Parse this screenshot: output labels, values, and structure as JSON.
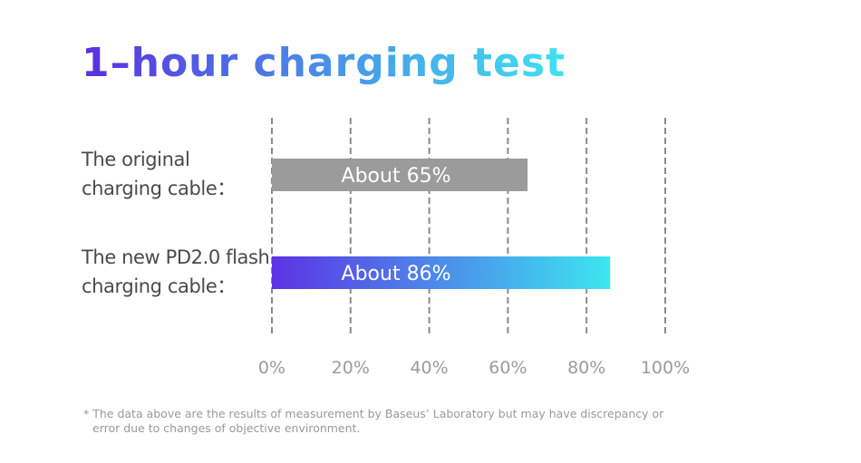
{
  "chart_data": {
    "type": "hbar",
    "title": "1–hour charging test",
    "categories": [
      "The original charging cable：",
      "The new PD2.0 flash charging cable："
    ],
    "values": [
      65,
      86
    ],
    "value_labels": [
      "About 65%",
      "About 86%"
    ],
    "colors": [
      [
        "#9b9b9b",
        "#9b9b9b"
      ],
      [
        "#5c33e4",
        "#3ce6f0"
      ]
    ],
    "xlim": [
      0,
      100
    ],
    "xticks": [
      {
        "value": 0,
        "label": "0%"
      },
      {
        "value": 20,
        "label": "20%"
      },
      {
        "value": 40,
        "label": "40%"
      },
      {
        "value": 60,
        "label": "60%"
      },
      {
        "value": 80,
        "label": "80%"
      },
      {
        "value": 100,
        "label": "100%"
      }
    ],
    "grid": true,
    "footnote": [
      "* The data above are the results of measurement by Baseus’  Laboratory but may have discrepancy or",
      "error due to changes of objective environment."
    ]
  }
}
